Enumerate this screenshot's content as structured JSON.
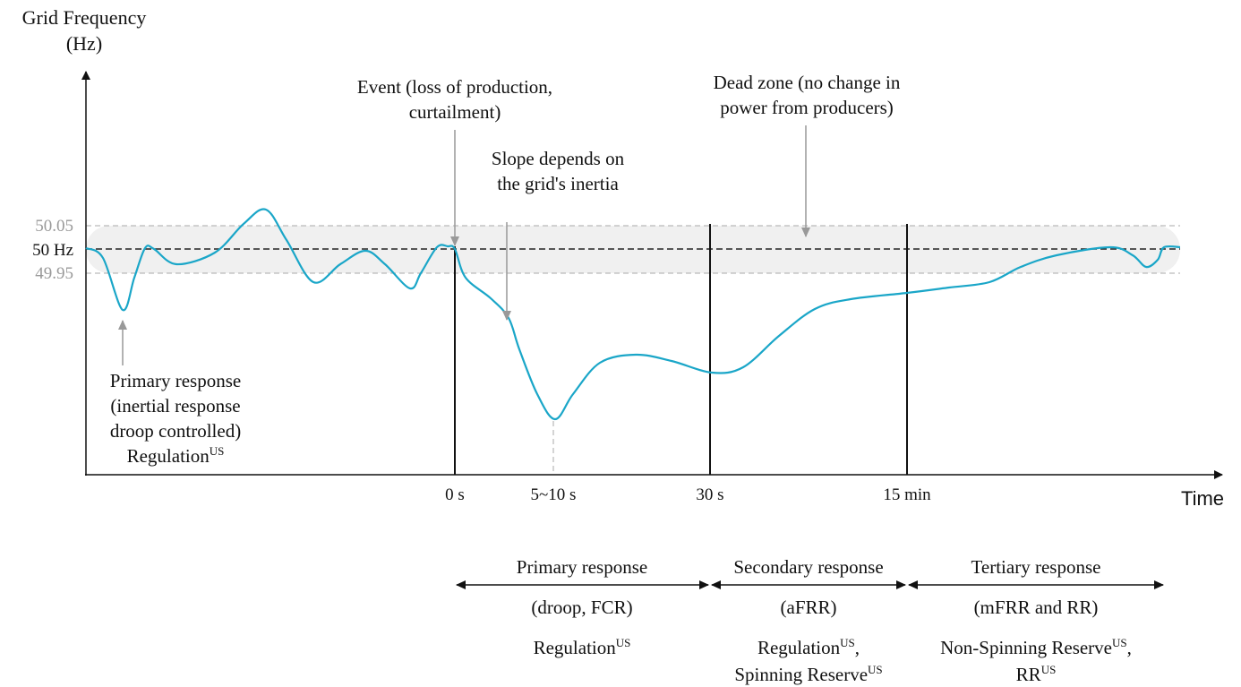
{
  "y_axis": {
    "title": [
      "Grid Frequency",
      "(Hz)"
    ],
    "labels": [
      "50.05",
      "50 Hz",
      "49.95"
    ]
  },
  "x_axis": {
    "title": "Time",
    "labels": [
      "0 s",
      "5~10 s",
      "30 s",
      "15 min"
    ]
  },
  "annotations": {
    "event": [
      {
        "text": "Event (loss of production,"
      },
      {
        "text": "curtailment)"
      }
    ],
    "slope": [
      {
        "text": "Slope depends on"
      },
      {
        "text": "the grid's inertia"
      }
    ],
    "dead_zone": [
      {
        "text": "Dead zone (no change in"
      },
      {
        "text": "power from producers)"
      }
    ],
    "primary": [
      {
        "text": "Primary response"
      },
      {
        "text": "(inertial response"
      },
      {
        "text": "droop controlled)"
      },
      {
        "text": "Regulation",
        "sup": "US"
      }
    ]
  },
  "phases": [
    {
      "lines": [
        {
          "text": "Primary response"
        },
        {
          "text": "(droop, FCR)"
        },
        {
          "text": "Regulation",
          "sup": "US"
        }
      ]
    },
    {
      "lines": [
        {
          "text": "Secondary response"
        },
        {
          "text": "(aFRR)"
        },
        {
          "text": "Regulation",
          "sup": "US",
          "tail": ","
        },
        {
          "text": "Spinning Reserve",
          "sup": "US"
        }
      ]
    },
    {
      "lines": [
        {
          "text": "Tertiary response"
        },
        {
          "text": "(mFRR and RR)"
        },
        {
          "text": "Non-Spinning Reserve",
          "sup": "US",
          "tail": ","
        },
        {
          "text": "RR",
          "sup": "US"
        }
      ]
    }
  ]
}
